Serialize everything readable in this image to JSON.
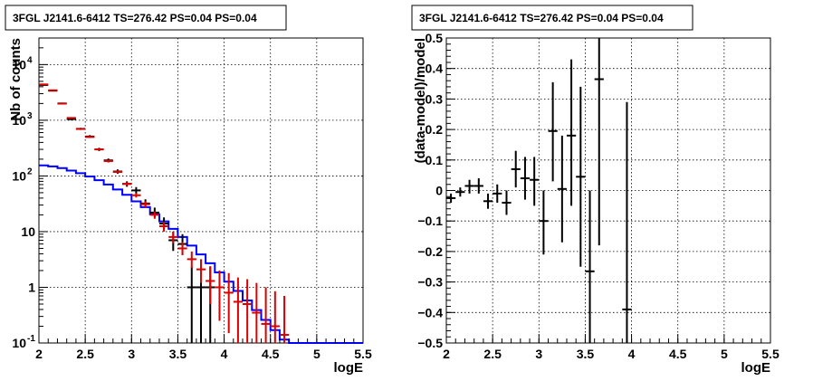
{
  "chart_data": [
    {
      "type": "step-histogram+errorbars",
      "title": "3FGL J2141.6-6412 TS=276.42 PS=0.04 PS=0.04",
      "xlabel": "logE",
      "ylabel": "Nb of counts",
      "xlim": [
        2,
        5.5
      ],
      "ylim": [
        0.1,
        30000
      ],
      "yscale": "log",
      "grid": true,
      "x_ticks": [
        "2",
        "2.5",
        "3",
        "3.5",
        "4",
        "4.5",
        "5",
        "5.5"
      ],
      "y_ticks": [
        {
          "value": 0.1,
          "base": "10",
          "exp": "-1"
        },
        {
          "value": 1,
          "base": "1",
          "exp": ""
        },
        {
          "value": 10,
          "base": "10",
          "exp": ""
        },
        {
          "value": 100,
          "base": "10",
          "exp": "2"
        },
        {
          "value": 1000,
          "base": "10",
          "exp": "3"
        },
        {
          "value": 10000,
          "base": "10",
          "exp": "4"
        }
      ],
      "model_step": {
        "color": "#0000ff",
        "edges": [
          2.0,
          2.1,
          2.2,
          2.3,
          2.4,
          2.5,
          2.6,
          2.7,
          2.8,
          2.9,
          3.0,
          3.1,
          3.2,
          3.3,
          3.4,
          3.5,
          3.6,
          3.7,
          3.8,
          3.9,
          4.0,
          4.1,
          4.2,
          4.3,
          4.4,
          4.5,
          4.6,
          4.7,
          4.8,
          4.9,
          5.0,
          5.1,
          5.2,
          5.3,
          5.4,
          5.5
        ],
        "values": [
          155,
          148,
          138,
          125,
          112,
          98,
          84,
          70,
          57,
          46,
          35,
          27.5,
          20.5,
          15.3,
          11.2,
          8.0,
          5.6,
          3.9,
          2.7,
          1.85,
          1.26,
          0.86,
          0.58,
          0.39,
          0.26,
          0.17,
          0.115,
          0.1,
          0.1,
          0.1,
          0.1,
          0.1,
          0.1,
          0.1,
          0.1
        ]
      },
      "series": [
        {
          "name": "",
          "color": "#000000",
          "points": [
            {
              "x": 2.05,
              "y": 4300,
              "lo": 4180,
              "hi": 4420
            },
            {
              "x": 2.15,
              "y": 3400,
              "lo": 3300,
              "hi": 3500
            },
            {
              "x": 2.25,
              "y": 2000,
              "lo": 1930,
              "hi": 2070
            },
            {
              "x": 2.35,
              "y": 1050,
              "lo": 1000,
              "hi": 1100
            },
            {
              "x": 2.45,
              "y": 700,
              "lo": 670,
              "hi": 730
            },
            {
              "x": 2.55,
              "y": 510,
              "lo": 480,
              "hi": 540
            },
            {
              "x": 2.65,
              "y": 300,
              "lo": 280,
              "hi": 320
            },
            {
              "x": 2.75,
              "y": 190,
              "lo": 175,
              "hi": 205
            },
            {
              "x": 2.85,
              "y": 120,
              "lo": 109,
              "hi": 131
            },
            {
              "x": 2.95,
              "y": 72,
              "lo": 64,
              "hi": 80
            },
            {
              "x": 3.05,
              "y": 55,
              "lo": 48,
              "hi": 63
            },
            {
              "x": 3.15,
              "y": 32,
              "lo": 27,
              "hi": 38
            },
            {
              "x": 3.25,
              "y": 22,
              "lo": 18,
              "hi": 27
            },
            {
              "x": 3.35,
              "y": 14,
              "lo": 11,
              "hi": 18
            },
            {
              "x": 3.45,
              "y": 7,
              "lo": 4.5,
              "hi": 10
            },
            {
              "x": 3.55,
              "y": 6,
              "lo": 3.8,
              "hi": 9
            },
            {
              "x": 3.65,
              "y": 1,
              "lo": 0.1,
              "hi": 2.3
            },
            {
              "x": 3.75,
              "y": 1,
              "lo": 0.1,
              "hi": 2.3
            },
            {
              "x": 3.85,
              "y": 1,
              "lo": 0.1,
              "hi": 2.3
            }
          ]
        },
        {
          "name": "",
          "color": "#dd0000",
          "points": [
            {
              "x": 2.05,
              "y": 4400,
              "lo": 4300,
              "hi": 4500
            },
            {
              "x": 2.15,
              "y": 3450,
              "lo": 3380,
              "hi": 3520
            },
            {
              "x": 2.25,
              "y": 2000,
              "lo": 1950,
              "hi": 2050
            },
            {
              "x": 2.35,
              "y": 1100,
              "lo": 1070,
              "hi": 1130
            },
            {
              "x": 2.45,
              "y": 700,
              "lo": 675,
              "hi": 725
            },
            {
              "x": 2.55,
              "y": 500,
              "lo": 480,
              "hi": 520
            },
            {
              "x": 2.65,
              "y": 300,
              "lo": 287,
              "hi": 313
            },
            {
              "x": 2.75,
              "y": 185,
              "lo": 176,
              "hi": 194
            },
            {
              "x": 2.85,
              "y": 118,
              "lo": 111,
              "hi": 125
            },
            {
              "x": 2.95,
              "y": 72,
              "lo": 67,
              "hi": 77
            },
            {
              "x": 3.05,
              "y": 45,
              "lo": 41,
              "hi": 49
            },
            {
              "x": 3.15,
              "y": 31,
              "lo": 27,
              "hi": 35
            },
            {
              "x": 3.25,
              "y": 20,
              "lo": 17,
              "hi": 23
            },
            {
              "x": 3.35,
              "y": 12.5,
              "lo": 10,
              "hi": 15
            },
            {
              "x": 3.45,
              "y": 8,
              "lo": 6.2,
              "hi": 10
            },
            {
              "x": 3.55,
              "y": 5,
              "lo": 3.8,
              "hi": 6.5
            },
            {
              "x": 3.65,
              "y": 3.2,
              "lo": 2.2,
              "hi": 4.4
            },
            {
              "x": 3.75,
              "y": 2.1,
              "lo": 1.2,
              "hi": 3.2
            },
            {
              "x": 3.85,
              "y": 1.3,
              "lo": 0.5,
              "hi": 2.4
            },
            {
              "x": 3.95,
              "y": 1.0,
              "lo": 0.25,
              "hi": 2.0
            },
            {
              "x": 4.05,
              "y": 0.8,
              "lo": 0.15,
              "hi": 1.8
            },
            {
              "x": 4.15,
              "y": 0.55,
              "lo": 0.1,
              "hi": 1.5
            },
            {
              "x": 4.25,
              "y": 0.5,
              "lo": 0.1,
              "hi": 1.4
            },
            {
              "x": 4.35,
              "y": 0.35,
              "lo": 0.1,
              "hi": 1.2
            },
            {
              "x": 4.45,
              "y": 0.22,
              "lo": 0.1,
              "hi": 1.0
            },
            {
              "x": 4.55,
              "y": 0.2,
              "lo": 0.1,
              "hi": 0.85
            },
            {
              "x": 4.65,
              "y": 0.14,
              "lo": 0.1,
              "hi": 0.7
            }
          ]
        }
      ]
    },
    {
      "type": "errorbars",
      "title": "3FGL J2141.6-6412 TS=276.42 PS=0.04 PS=0.04",
      "xlabel": "logE",
      "ylabel": "(data-model)/model",
      "xlim": [
        2,
        5.5
      ],
      "ylim": [
        -0.5,
        0.5
      ],
      "grid": true,
      "x_ticks": [
        "2",
        "2.5",
        "3",
        "3.5",
        "4",
        "4.5",
        "5",
        "5.5"
      ],
      "y_ticks": [
        "0.5",
        "0.4",
        "0.3",
        "0.2",
        "0.1",
        "0",
        "−0.1",
        "−0.2",
        "−0.3",
        "−0.4",
        "−0.5"
      ],
      "y_tick_values": [
        0.5,
        0.4,
        0.3,
        0.2,
        0.1,
        0,
        -0.1,
        -0.2,
        -0.3,
        -0.4,
        -0.5
      ],
      "series": [
        {
          "name": "",
          "color": "#000000",
          "points": [
            {
              "x": 2.05,
              "y": -0.025,
              "lo": -0.04,
              "hi": -0.01
            },
            {
              "x": 2.15,
              "y": -0.005,
              "lo": -0.02,
              "hi": 0.01
            },
            {
              "x": 2.25,
              "y": 0.015,
              "lo": -0.01,
              "hi": 0.035
            },
            {
              "x": 2.35,
              "y": 0.015,
              "lo": -0.01,
              "hi": 0.04
            },
            {
              "x": 2.45,
              "y": -0.035,
              "lo": -0.06,
              "hi": -0.01
            },
            {
              "x": 2.55,
              "y": -0.01,
              "lo": -0.04,
              "hi": 0.02
            },
            {
              "x": 2.65,
              "y": -0.04,
              "lo": -0.08,
              "hi": 0.0
            },
            {
              "x": 2.75,
              "y": 0.07,
              "lo": 0.01,
              "hi": 0.13
            },
            {
              "x": 2.85,
              "y": 0.04,
              "lo": -0.03,
              "hi": 0.11
            },
            {
              "x": 2.95,
              "y": 0.035,
              "lo": -0.05,
              "hi": 0.11
            },
            {
              "x": 3.05,
              "y": -0.1,
              "lo": -0.21,
              "hi": 0.0
            },
            {
              "x": 3.15,
              "y": 0.195,
              "lo": 0.03,
              "hi": 0.355
            },
            {
              "x": 3.25,
              "y": 0.005,
              "lo": -0.17,
              "hi": 0.18
            },
            {
              "x": 3.35,
              "y": 0.18,
              "lo": -0.05,
              "hi": 0.43
            },
            {
              "x": 3.45,
              "y": 0.045,
              "lo": -0.25,
              "hi": 0.34
            },
            {
              "x": 3.55,
              "y": -0.265,
              "lo": -0.5,
              "hi": 0.0
            },
            {
              "x": 3.65,
              "y": 0.365,
              "lo": -0.18,
              "hi": 0.5
            },
            {
              "x": 3.95,
              "y": -0.39,
              "lo": -0.5,
              "hi": 0.29
            }
          ]
        }
      ]
    }
  ]
}
